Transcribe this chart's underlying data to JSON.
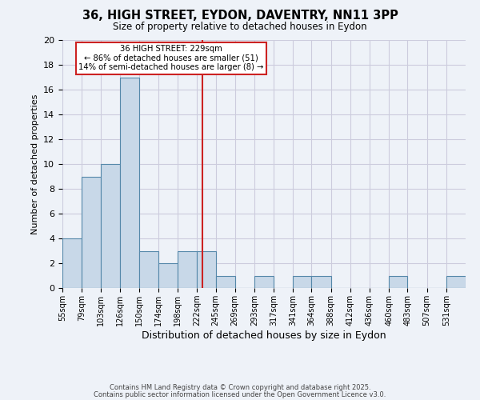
{
  "title": "36, HIGH STREET, EYDON, DAVENTRY, NN11 3PP",
  "subtitle": "Size of property relative to detached houses in Eydon",
  "xlabel": "Distribution of detached houses by size in Eydon",
  "ylabel": "Number of detached properties",
  "bar_edges": [
    55,
    79,
    103,
    126,
    150,
    174,
    198,
    222,
    245,
    269,
    293,
    317,
    341,
    364,
    388,
    412,
    436,
    460,
    483,
    507,
    531,
    555
  ],
  "bar_heights": [
    4,
    9,
    10,
    17,
    3,
    2,
    3,
    3,
    1,
    0,
    1,
    0,
    1,
    1,
    0,
    0,
    0,
    1,
    0,
    0,
    1
  ],
  "bar_color": "#c8d8e8",
  "bar_edge_color": "#5588aa",
  "reference_line_x": 229,
  "annotation_title": "36 HIGH STREET: 229sqm",
  "annotation_line1": "← 86% of detached houses are smaller (51)",
  "annotation_line2": "14% of semi-detached houses are larger (8) →",
  "annotation_box_color": "#ffffff",
  "annotation_box_edge": "#cc2222",
  "reference_line_color": "#cc2222",
  "ylim": [
    0,
    20
  ],
  "yticks": [
    0,
    2,
    4,
    6,
    8,
    10,
    12,
    14,
    16,
    18,
    20
  ],
  "tick_labels": [
    "55sqm",
    "79sqm",
    "103sqm",
    "126sqm",
    "150sqm",
    "174sqm",
    "198sqm",
    "222sqm",
    "245sqm",
    "269sqm",
    "293sqm",
    "317sqm",
    "341sqm",
    "364sqm",
    "388sqm",
    "412sqm",
    "436sqm",
    "460sqm",
    "483sqm",
    "507sqm",
    "531sqm"
  ],
  "grid_color": "#ccccdd",
  "background_color": "#eef2f8",
  "footer_line1": "Contains HM Land Registry data © Crown copyright and database right 2025.",
  "footer_line2": "Contains public sector information licensed under the Open Government Licence v3.0."
}
